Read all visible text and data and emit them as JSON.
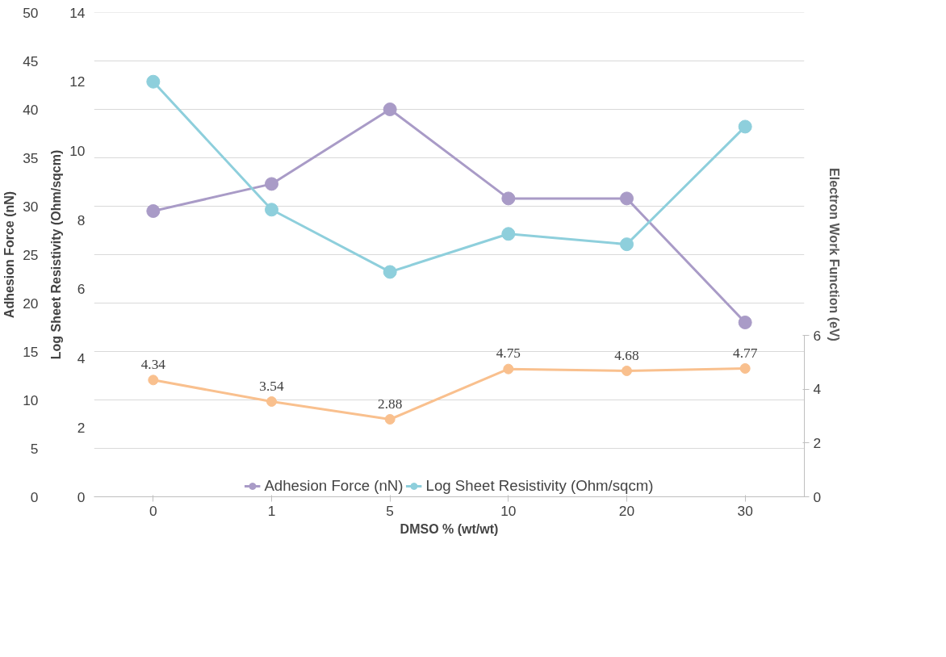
{
  "chart_data": {
    "type": "line",
    "xlabel": "DMSO % (wt/wt)",
    "ylabel": "Log Sheet Resistivity (Ohm/sqcm)",
    "y2label": "Adhesion Force (nN)",
    "y3label": "Electron Work Function (eV)",
    "categories": [
      "0",
      "1",
      "5",
      "10",
      "20",
      "30"
    ],
    "ylim": [
      0,
      14
    ],
    "yticks": [
      0,
      2,
      4,
      6,
      8,
      10,
      12,
      14
    ],
    "y2lim": [
      0,
      50
    ],
    "y2ticks": [
      0,
      5,
      10,
      15,
      20,
      25,
      30,
      35,
      40,
      45,
      50
    ],
    "y3lim": [
      0,
      6
    ],
    "y3ticks": [
      0,
      2,
      4,
      6
    ],
    "grid": "y2",
    "legend": "bottom",
    "marker": "circle",
    "line_style": "solid",
    "series": [
      {
        "name": "Adhesion Force (nN)",
        "color": "#a99bc7",
        "axis": "y2",
        "values": [
          29.5,
          32.3,
          40.0,
          30.8,
          30.8,
          18.0
        ]
      },
      {
        "name": "Log Sheet Resistivity (Ohm/sqcm)",
        "color": "#8ecfdc",
        "axis": "y",
        "values": [
          12.0,
          8.3,
          6.5,
          7.6,
          7.3,
          10.7
        ]
      },
      {
        "color": "#f9c08e",
        "axis": "y3",
        "values": [
          4.34,
          3.54,
          2.88,
          4.75,
          4.68,
          4.77
        ],
        "value_labels": [
          "4.34",
          "3.54",
          "2.88",
          "4.75",
          "4.68",
          "4.77"
        ]
      }
    ]
  }
}
